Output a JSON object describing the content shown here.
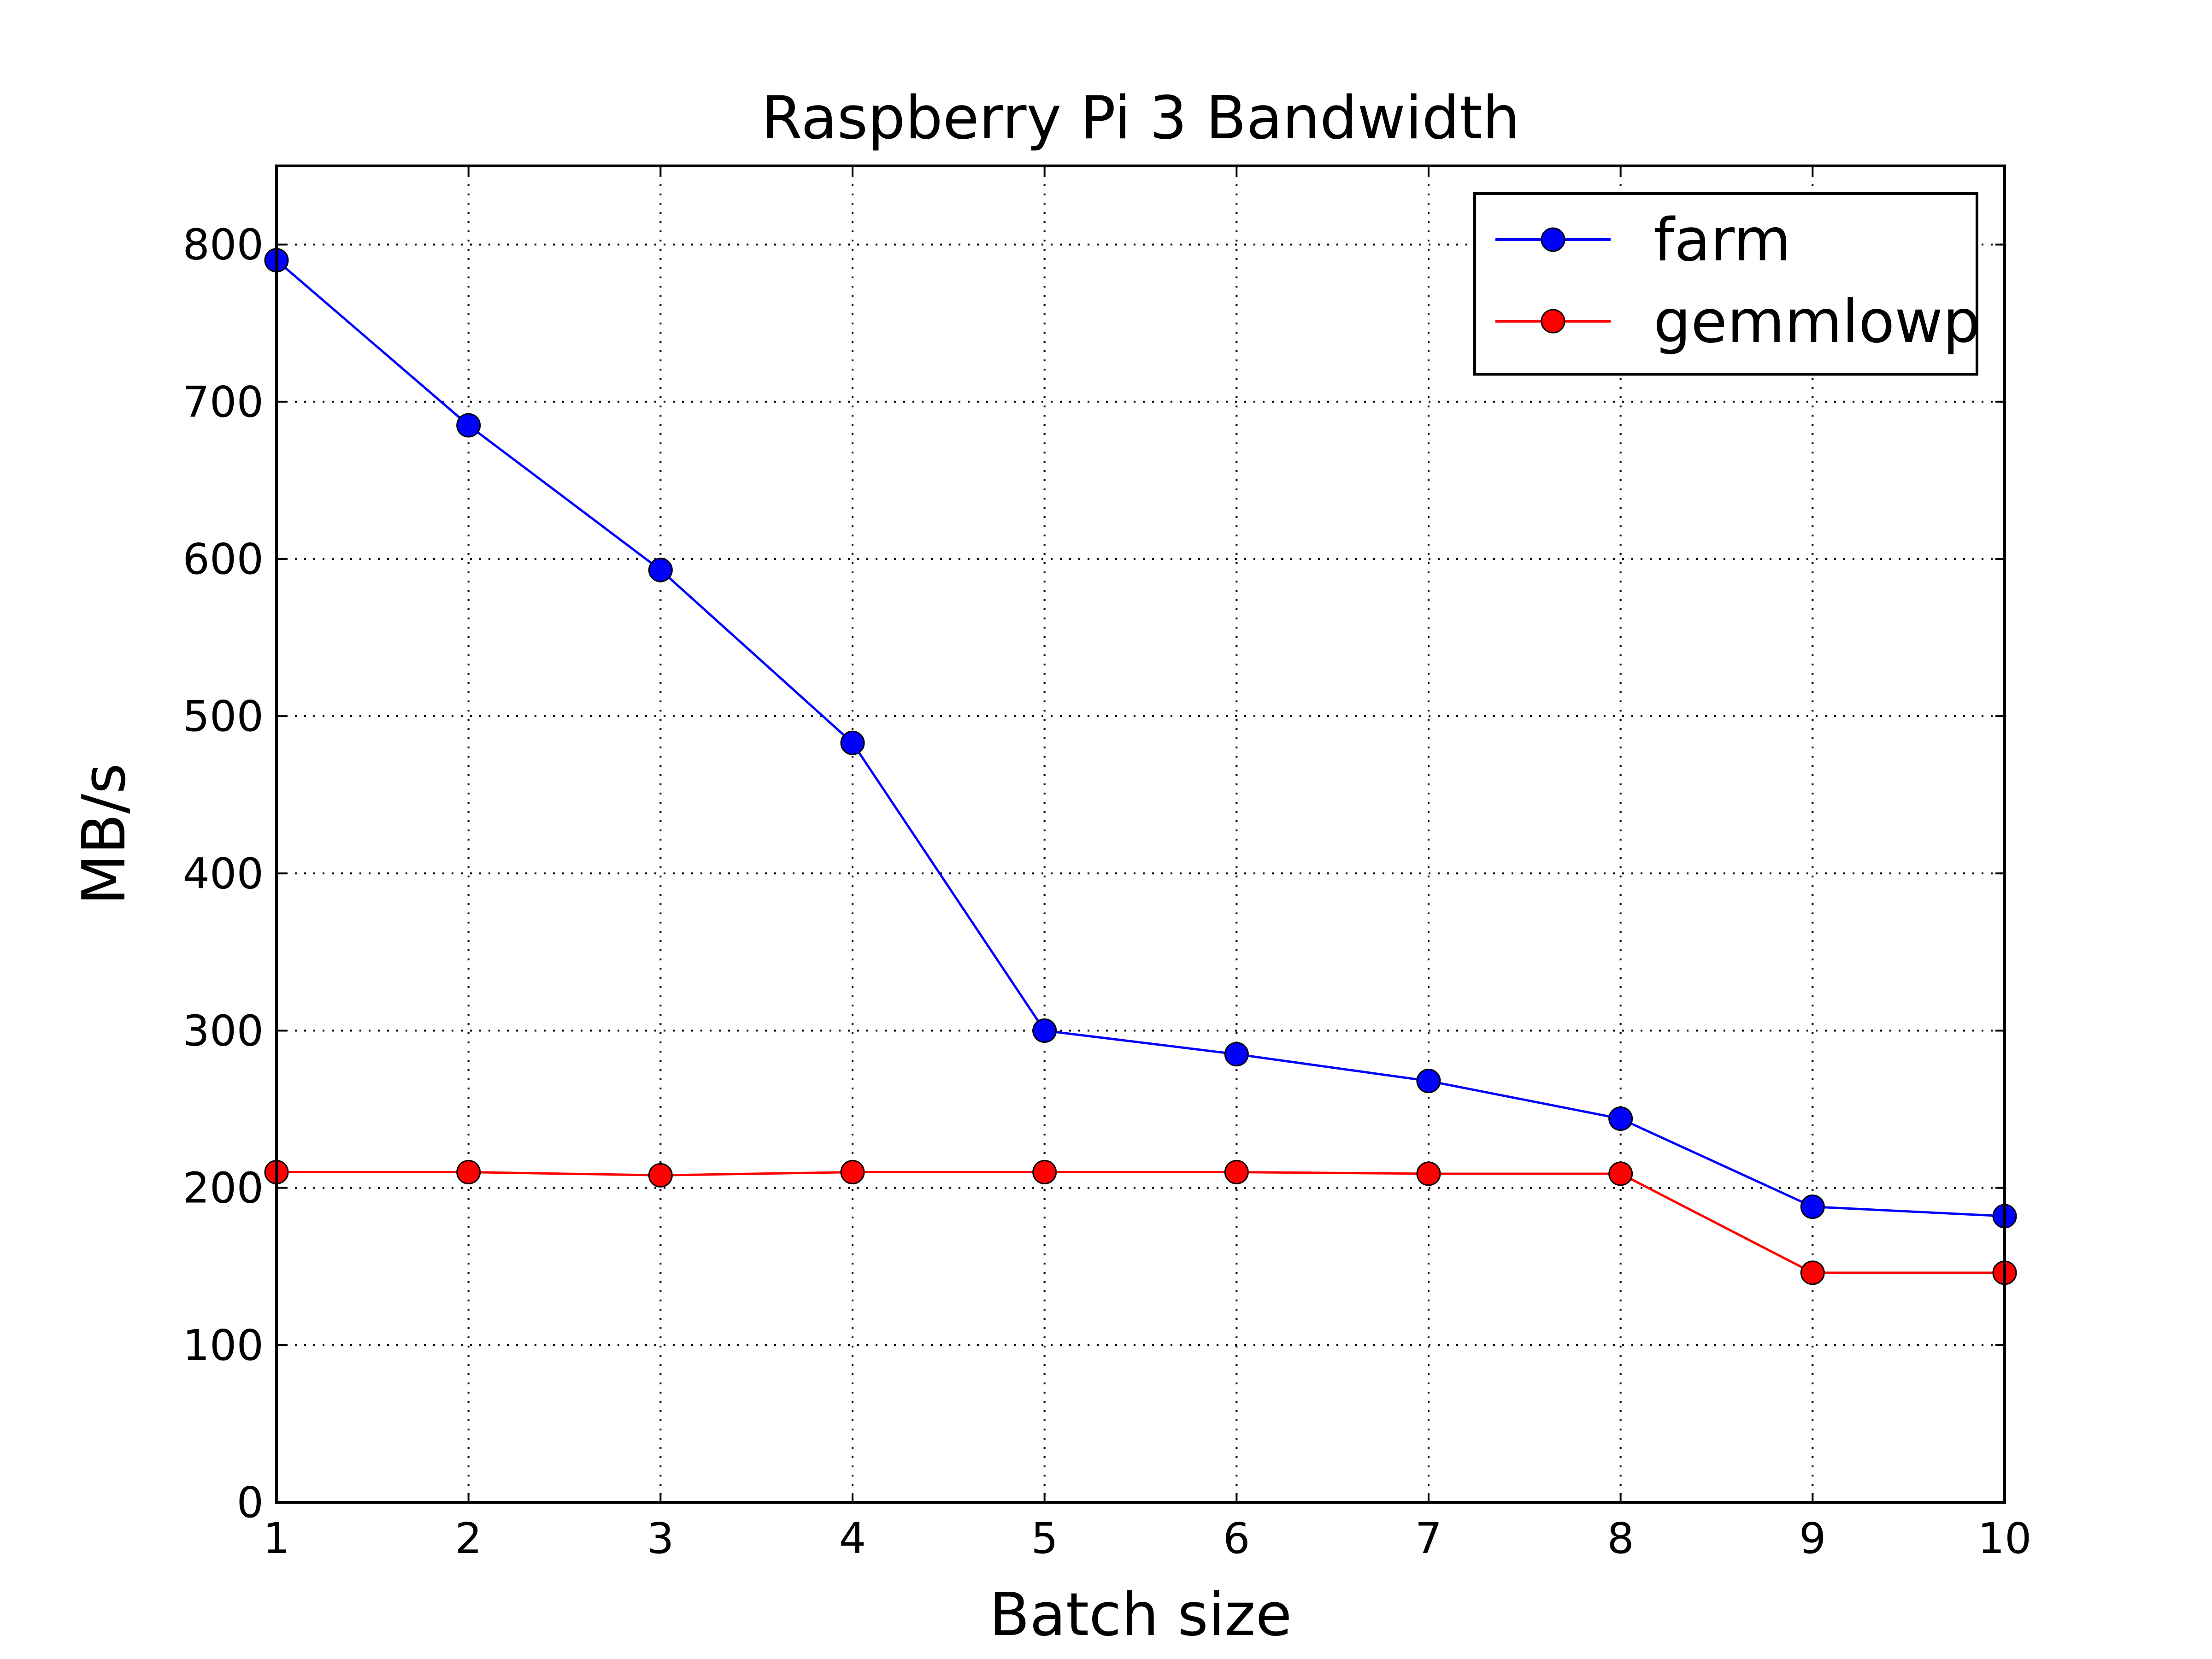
{
  "chart_data": {
    "type": "line",
    "title": "Raspberry Pi 3 Bandwidth",
    "xlabel": "Batch size",
    "ylabel": "MB/s",
    "x": [
      1,
      2,
      3,
      4,
      5,
      6,
      7,
      8,
      9,
      10
    ],
    "xlim": [
      1,
      10
    ],
    "ylim": [
      0,
      850
    ],
    "xticks": [
      1,
      2,
      3,
      4,
      5,
      6,
      7,
      8,
      9,
      10
    ],
    "yticks": [
      0,
      100,
      200,
      300,
      400,
      500,
      600,
      700,
      800
    ],
    "grid": true,
    "legend_position": "top-right",
    "series": [
      {
        "name": "farm",
        "color": "#0000ff",
        "values": [
          790,
          685,
          593,
          483,
          300,
          285,
          268,
          244,
          188,
          182
        ]
      },
      {
        "name": "gemmlowp",
        "color": "#ff0000",
        "values": [
          210,
          210,
          208,
          210,
          210,
          210,
          209,
          209,
          146,
          146
        ]
      }
    ]
  }
}
